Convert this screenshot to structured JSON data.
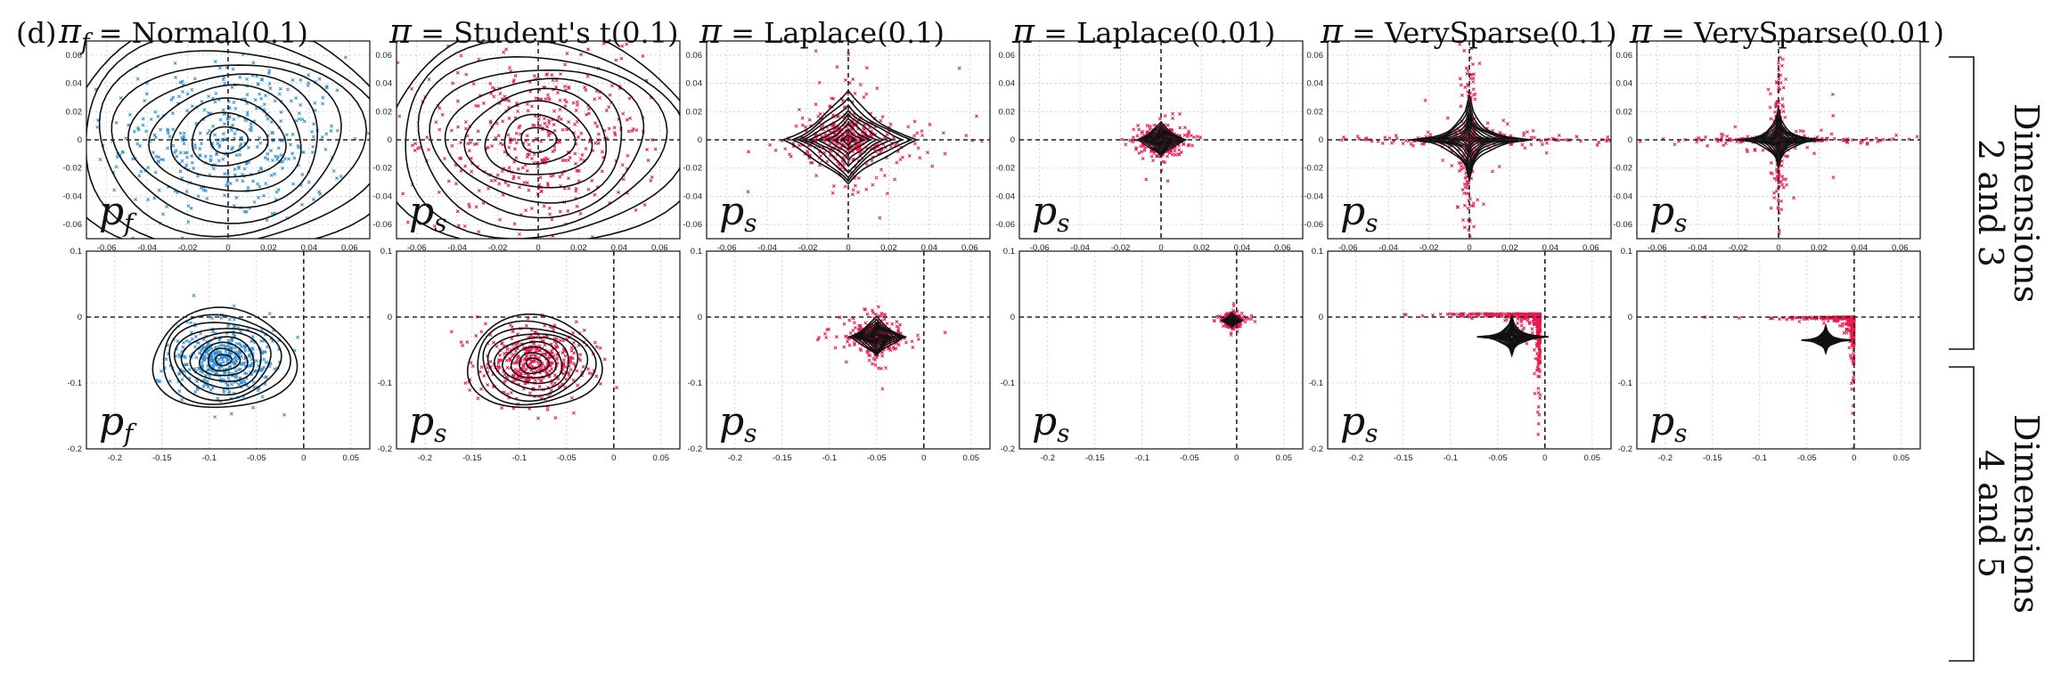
{
  "figure": {
    "panel_label": "(d)",
    "row_labels": [
      [
        "Dimensions",
        "2 and 3"
      ],
      [
        "Dimensions",
        "4 and 5"
      ]
    ]
  },
  "chart_data": {
    "type": "scatter",
    "columns": [
      {
        "title_symbol": "π",
        "title_sub": "f",
        "title": "= Normal(0.1)",
        "dist": "normal",
        "scale": 0.03,
        "color": "#2b8fd6",
        "pdf_label": {
          "symbol": "p",
          "sub": "f"
        }
      },
      {
        "title_symbol": "π",
        "title_sub": "",
        "title": "= Student's t(0.1)",
        "dist": "student",
        "scale": 0.027,
        "color": "#e8174c",
        "pdf_label": {
          "symbol": "p",
          "sub": "s"
        }
      },
      {
        "title_symbol": "π",
        "title_sub": "",
        "title": "= Laplace(0.1)",
        "dist": "laplace",
        "scale": 0.011,
        "color": "#e8174c",
        "pdf_label": {
          "symbol": "p",
          "sub": "s"
        }
      },
      {
        "title_symbol": "π",
        "title_sub": "",
        "title": "= Laplace(0.01)",
        "dist": "laplace",
        "scale": 0.004,
        "color": "#e8174c",
        "pdf_label": {
          "symbol": "p",
          "sub": "s"
        }
      },
      {
        "title_symbol": "π",
        "title_sub": "",
        "title": "= VerySparse(0.1)",
        "dist": "sparse",
        "scale": 0.02,
        "color": "#e8174c",
        "pdf_label": {
          "symbol": "p",
          "sub": "s"
        }
      },
      {
        "title_symbol": "π",
        "title_sub": "",
        "title": "= VerySparse(0.01)",
        "dist": "sparse",
        "scale": 0.014,
        "color": "#e8174c",
        "pdf_label": {
          "symbol": "p",
          "sub": "s"
        }
      }
    ],
    "rows": [
      {
        "xlim": [
          -0.07,
          0.07
        ],
        "ylim": [
          -0.07,
          0.07
        ],
        "xticks": [
          -0.06,
          -0.04,
          -0.02,
          0,
          0.02,
          0.04,
          0.06
        ],
        "yticks": [
          0.06,
          0.04,
          0.02,
          0,
          -0.02,
          -0.04,
          -0.06
        ],
        "xtick_labels": [
          "-0.06",
          "-0.04",
          "-0.02",
          "0",
          "0.02",
          "0.04",
          "0.06"
        ],
        "ytick_labels": [
          "0.06",
          "0.04",
          "0.02",
          "0",
          "-0.02",
          "-0.04",
          "-0.06"
        ],
        "centers": [
          [
            0,
            0
          ],
          [
            0,
            0
          ],
          [
            0,
            0
          ],
          [
            0,
            0
          ],
          [
            0,
            0
          ],
          [
            0,
            0
          ]
        ]
      },
      {
        "xlim": [
          -0.23,
          0.07
        ],
        "ylim": [
          -0.2,
          0.1
        ],
        "xticks": [
          -0.2,
          -0.15,
          -0.1,
          -0.05,
          0,
          0.05
        ],
        "yticks": [
          0.1,
          0,
          -0.1,
          -0.2
        ],
        "xtick_labels": [
          "-0.2",
          "-0.15",
          "-0.1",
          "-0.05",
          "0",
          "0.05"
        ],
        "ytick_labels": [
          "0.1",
          "0",
          "-0.1",
          "-0.2"
        ],
        "centers": [
          [
            -0.085,
            -0.065
          ],
          [
            -0.085,
            -0.07
          ],
          [
            -0.05,
            -0.03
          ],
          [
            -0.005,
            -0.005
          ],
          [
            -0.045,
            -0.025
          ],
          [
            -0.04,
            -0.03
          ]
        ]
      }
    ],
    "grid": true,
    "markers": "x",
    "contours": "black"
  }
}
